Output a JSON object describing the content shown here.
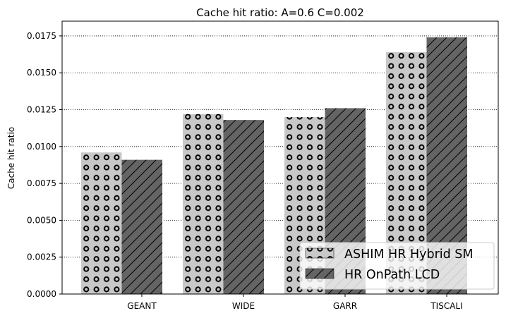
{
  "chart_data": {
    "type": "bar",
    "title": "Cache hit ratio: A=0.6 C=0.002",
    "xlabel": "",
    "ylabel": "Cache hit ratio",
    "categories": [
      "GEANT",
      "WIDE",
      "GARR",
      "TISCALI"
    ],
    "ylim": [
      0,
      0.0185
    ],
    "yticks": [
      "0.0000",
      "0.0025",
      "0.0050",
      "0.0075",
      "0.0100",
      "0.0125",
      "0.0150",
      "0.0175"
    ],
    "grid": "horizontal dotted",
    "legend_position": "bottom-right",
    "series": [
      {
        "name": "ASHIM HR Hybrid SM",
        "values": [
          0.0096,
          0.0122,
          0.012,
          0.0164
        ],
        "color": "#c8c8c8",
        "hatch": "circles"
      },
      {
        "name": "HR OnPath LCD",
        "values": [
          0.0091,
          0.0118,
          0.0126,
          0.0174
        ],
        "color": "#646464",
        "hatch": "diagonal"
      }
    ]
  }
}
